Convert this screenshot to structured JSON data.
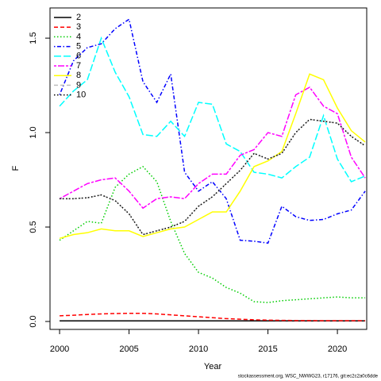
{
  "chart_data": {
    "type": "line",
    "xlabel": "Year",
    "ylabel": "F",
    "footnote": "stockassessment.org, WSC_NWWG23, r17176, git:ec2c2a0c6dde",
    "x": [
      2000,
      2001,
      2002,
      2003,
      2004,
      2005,
      2006,
      2007,
      2008,
      2009,
      2010,
      2011,
      2012,
      2013,
      2014,
      2015,
      2016,
      2017,
      2018,
      2019,
      2020,
      2021,
      2022
    ],
    "xlim": [
      1999.31,
      2022.11
    ],
    "xticks": [
      2000,
      2005,
      2010,
      2015,
      2020
    ],
    "ylim": [
      -0.042,
      1.66
    ],
    "yticks": [
      {
        "value": 0.0,
        "label": "0.0"
      },
      0.5,
      {
        "value": 1.0,
        "label": "1.0"
      },
      1.5
    ],
    "legend": "topleft",
    "series": [
      {
        "name": "2",
        "color": "#000000",
        "dash": "solid",
        "values": [
          0.003,
          0.003,
          0.003,
          0.003,
          0.003,
          0.003,
          0.003,
          0.003,
          0.003,
          0.003,
          0.003,
          0.003,
          0.003,
          0.003,
          0.003,
          0.003,
          0.003,
          0.003,
          0.003,
          0.003,
          0.003,
          0.003,
          0.003
        ]
      },
      {
        "name": "3",
        "color": "#ff0000",
        "dash": "dashed",
        "values": [
          0.03,
          0.033,
          0.037,
          0.04,
          0.042,
          0.043,
          0.043,
          0.04,
          0.035,
          0.03,
          0.025,
          0.02,
          0.015,
          0.012,
          0.009,
          0.007,
          0.006,
          0.005,
          0.005,
          0.004,
          0.004,
          0.004,
          0.004
        ]
      },
      {
        "name": "4",
        "color": "#00cd00",
        "dash": "dotted",
        "values": [
          0.43,
          0.48,
          0.53,
          0.52,
          0.71,
          0.78,
          0.82,
          0.74,
          0.53,
          0.36,
          0.26,
          0.23,
          0.18,
          0.15,
          0.105,
          0.1,
          0.11,
          0.115,
          0.12,
          0.125,
          0.13,
          0.125,
          0.125
        ]
      },
      {
        "name": "5",
        "color": "#0000ff",
        "dash": "dotdash",
        "values": [
          1.2,
          1.38,
          1.45,
          1.47,
          1.55,
          1.6,
          1.27,
          1.16,
          1.31,
          0.79,
          0.69,
          0.74,
          0.65,
          0.43,
          0.425,
          0.415,
          0.61,
          0.555,
          0.535,
          0.54,
          0.57,
          0.59,
          0.69
        ]
      },
      {
        "name": "6",
        "color": "#00ffff",
        "dash": "longdash",
        "values": [
          1.14,
          1.22,
          1.28,
          1.5,
          1.32,
          1.19,
          0.99,
          0.98,
          1.06,
          0.98,
          1.16,
          1.15,
          0.94,
          0.9,
          0.79,
          0.78,
          0.76,
          0.82,
          0.87,
          1.09,
          0.86,
          0.74,
          0.77
        ]
      },
      {
        "name": "7",
        "color": "#ff00ff",
        "dash": "twodash",
        "values": [
          0.65,
          0.69,
          0.73,
          0.75,
          0.76,
          0.69,
          0.6,
          0.65,
          0.66,
          0.65,
          0.73,
          0.78,
          0.78,
          0.88,
          0.91,
          1.0,
          0.98,
          1.2,
          1.24,
          1.14,
          1.1,
          0.87,
          0.76
        ]
      },
      {
        "name": "8",
        "color": "#ffff00",
        "dash": "solid",
        "values": [
          0.44,
          0.46,
          0.47,
          0.49,
          0.48,
          0.48,
          0.45,
          0.47,
          0.49,
          0.5,
          0.54,
          0.58,
          0.58,
          0.69,
          0.82,
          0.85,
          0.9,
          1.1,
          1.31,
          1.28,
          1.13,
          1.01,
          0.95
        ]
      },
      {
        "name": "9",
        "color": "#bebebe",
        "dash": "dashed",
        "values": [
          0.65,
          0.65,
          0.655,
          0.67,
          0.64,
          0.57,
          0.46,
          0.48,
          0.5,
          0.53,
          0.61,
          0.66,
          0.73,
          0.8,
          0.89,
          0.86,
          0.89,
          1.0,
          1.07,
          1.06,
          1.05,
          0.98,
          0.93
        ]
      },
      {
        "name": "10",
        "color": "#000000",
        "dash": "dotted",
        "values": [
          0.65,
          0.65,
          0.655,
          0.67,
          0.64,
          0.57,
          0.46,
          0.48,
          0.5,
          0.53,
          0.61,
          0.66,
          0.73,
          0.8,
          0.89,
          0.86,
          0.89,
          1.0,
          1.07,
          1.06,
          1.05,
          0.98,
          0.93
        ]
      }
    ]
  }
}
